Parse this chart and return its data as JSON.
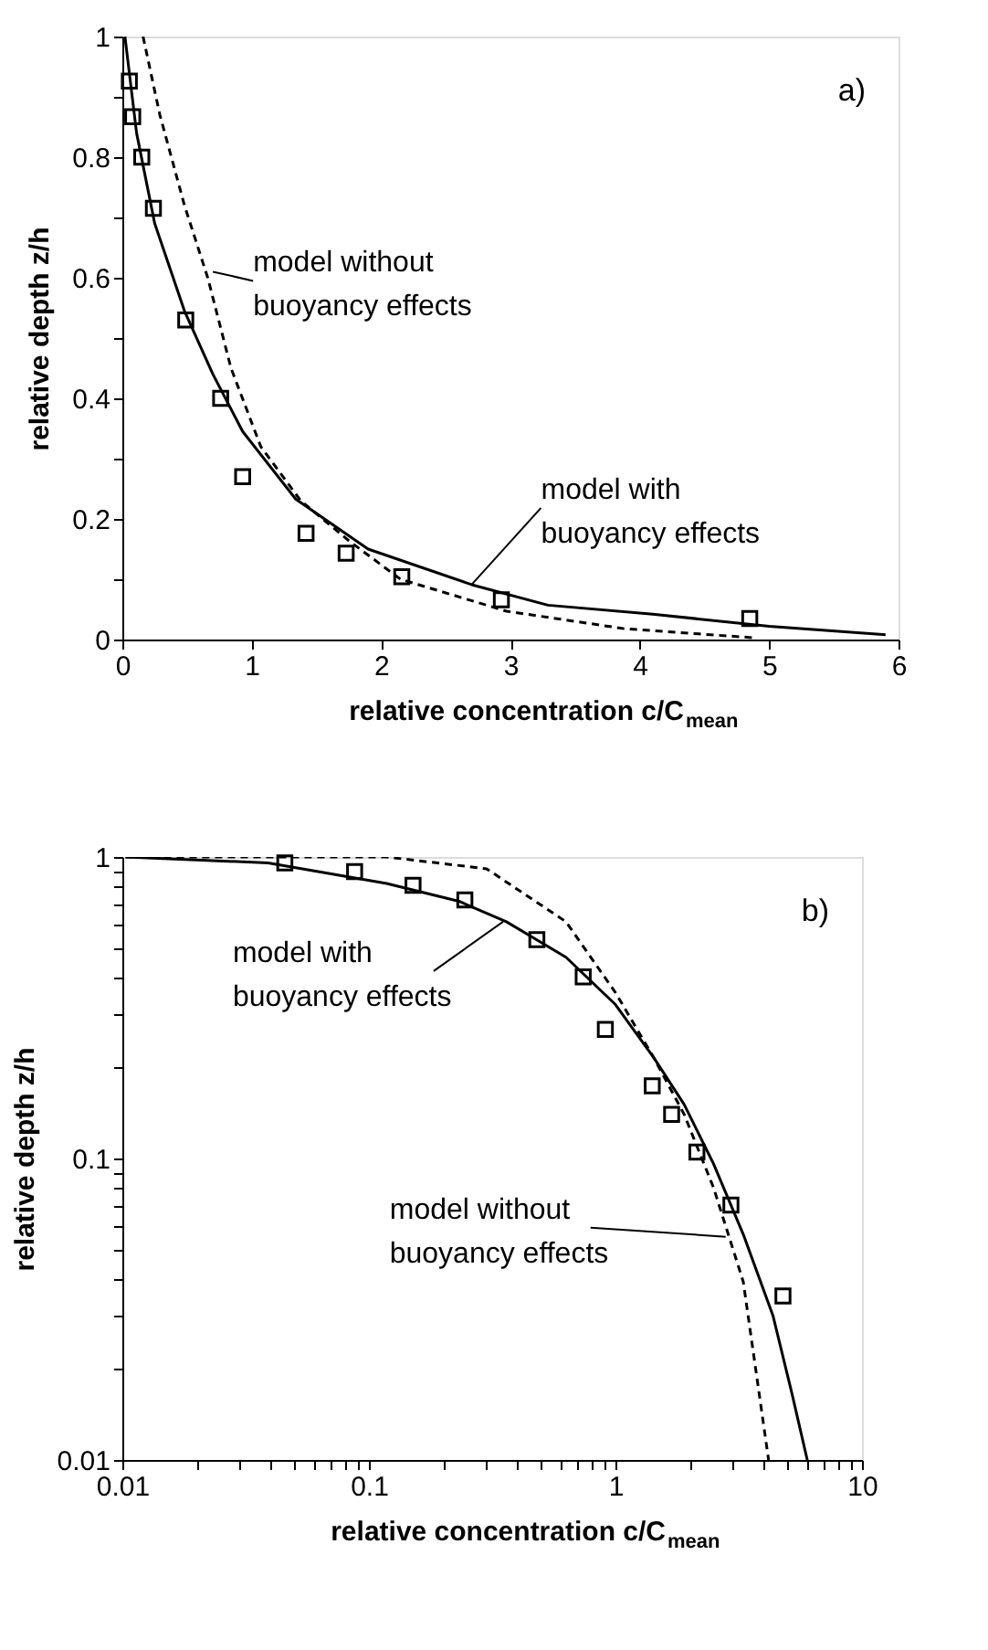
{
  "chart_data": [
    {
      "type": "line",
      "xlabel": "relative concentration c/C$_{mean}$",
      "ylabel": "relative depth z/h",
      "xlim": [
        0,
        6
      ],
      "ylim": [
        0,
        1
      ],
      "xticks": [
        0,
        1,
        2,
        3,
        4,
        5,
        6
      ],
      "yticks": [
        0,
        {
          "value": 0.1,
          "label": null
        },
        0.2,
        {
          "value": 0.3,
          "label": null
        },
        0.4,
        {
          "value": 0.5,
          "label": null
        },
        0.6,
        {
          "value": 0.7,
          "label": null
        },
        0.8,
        {
          "value": 0.9,
          "label": null
        },
        1
      ],
      "grid": false,
      "series": [
        {
          "type": "line",
          "line_style": "solid",
          "color": "#000000",
          "x": [
            0.02,
            0.11,
            0.25,
            0.48,
            0.7,
            0.93,
            1.34,
            1.9,
            2.7,
            3.29,
            4.1,
            5.0,
            5.9
          ],
          "values": [
            1.0,
            0.84,
            0.69,
            0.545,
            0.44,
            0.345,
            0.233,
            0.15,
            0.091,
            0.057,
            0.042,
            0.022,
            0.008
          ]
        },
        {
          "type": "line",
          "line_style": "dashed",
          "color": "#000000",
          "x": [
            0.16,
            0.29,
            0.48,
            0.66,
            0.84,
            1.07,
            1.38,
            1.75,
            2.15,
            2.97,
            3.88,
            4.88
          ],
          "values": [
            1.0,
            0.87,
            0.72,
            0.6,
            0.45,
            0.32,
            0.23,
            0.164,
            0.1,
            0.047,
            0.018,
            0.003
          ]
        },
        {
          "type": "scatter",
          "marker": "square",
          "color": "#000000",
          "x": [
            0.054,
            0.08,
            0.15,
            0.24,
            0.49,
            0.76,
            0.93,
            1.42,
            1.73,
            2.16,
            2.93,
            4.85
          ],
          "values": [
            0.926,
            0.867,
            0.8,
            0.715,
            0.53,
            0.4,
            0.27,
            0.176,
            0.143,
            0.104,
            0.066,
            0.035
          ]
        }
      ],
      "annotations": [
        "a)",
        {
          "text": "model without\nbuoyancy effects",
          "x": 0.7,
          "y": 0.61
        },
        {
          "text": "model with\nbuoyancy effects",
          "x": 2.7,
          "y": 0.091
        }
      ]
    },
    {
      "type": "line",
      "xlabel": "relative concentration c/C$_{mean}$",
      "ylabel": "relative depth z/h",
      "log": "xy",
      "xlim": [
        0.01,
        10
      ],
      "ylim": [
        0.01,
        1
      ],
      "xticks": [
        0.01,
        {
          "value": 0.02,
          "label": null
        },
        {
          "value": 0.03,
          "label": null
        },
        {
          "value": 0.04,
          "label": null
        },
        {
          "value": 0.05,
          "label": null
        },
        {
          "value": 0.06,
          "label": null
        },
        {
          "value": 0.07,
          "label": null
        },
        {
          "value": 0.08,
          "label": null
        },
        {
          "value": 0.09,
          "label": null
        },
        0.1,
        {
          "value": 0.2,
          "label": null
        },
        {
          "value": 0.3,
          "label": null
        },
        {
          "value": 0.4,
          "label": null
        },
        {
          "value": 0.5,
          "label": null
        },
        {
          "value": 0.6,
          "label": null
        },
        {
          "value": 0.7,
          "label": null
        },
        {
          "value": 0.8,
          "label": null
        },
        {
          "value": 0.9,
          "label": null
        },
        1,
        {
          "value": 2,
          "label": null
        },
        {
          "value": 3,
          "label": null
        },
        {
          "value": 4,
          "label": null
        },
        {
          "value": 5,
          "label": null
        },
        {
          "value": 6,
          "label": null
        },
        {
          "value": 7,
          "label": null
        },
        {
          "value": 8,
          "label": null
        },
        {
          "value": 9,
          "label": null
        },
        10
      ],
      "yticks": [
        0.01,
        {
          "value": 0.02,
          "label": null
        },
        {
          "value": 0.03,
          "label": null
        },
        {
          "value": 0.04,
          "label": null
        },
        {
          "value": 0.05,
          "label": null
        },
        {
          "value": 0.06,
          "label": null
        },
        {
          "value": 0.07,
          "label": null
        },
        {
          "value": 0.08,
          "label": null
        },
        {
          "value": 0.09,
          "label": null
        },
        0.1,
        {
          "value": 0.2,
          "label": null
        },
        {
          "value": 0.3,
          "label": null
        },
        {
          "value": 0.4,
          "label": null
        },
        {
          "value": 0.5,
          "label": null
        },
        {
          "value": 0.6,
          "label": null
        },
        {
          "value": 0.7,
          "label": null
        },
        {
          "value": 0.8,
          "label": null
        },
        {
          "value": 0.9,
          "label": null
        },
        1
      ],
      "grid": false,
      "series": [
        {
          "type": "line",
          "line_style": "solid",
          "color": "#000000",
          "x": [
            0.0103,
            0.039,
            0.118,
            0.232,
            0.361,
            0.63,
            1.0,
            1.43,
            1.9,
            2.5,
            3.3,
            4.36,
            5.2,
            6.0
          ],
          "values": [
            1.0,
            0.956,
            0.817,
            0.713,
            0.61,
            0.465,
            0.324,
            0.216,
            0.151,
            0.096,
            0.056,
            0.03,
            0.0166,
            0.01
          ]
        },
        {
          "type": "line",
          "line_style": "dashed",
          "color": "#000000",
          "x": [
            0.0103,
            0.118,
            0.3,
            0.63,
            1.0,
            1.43,
            1.9,
            2.5,
            3.3,
            4.18
          ],
          "values": [
            1.0,
            1.0,
            0.914,
            0.61,
            0.355,
            0.216,
            0.14,
            0.08,
            0.039,
            0.01
          ]
        },
        {
          "type": "scatter",
          "marker": "square",
          "color": "#000000",
          "x": [
            0.0456,
            0.0875,
            0.151,
            0.245,
            0.48,
            0.74,
            0.91,
            1.41,
            1.69,
            2.14,
            2.94,
            4.78
          ],
          "values": [
            0.956,
            0.894,
            0.806,
            0.72,
            0.532,
            0.4,
            0.268,
            0.174,
            0.14,
            0.105,
            0.07,
            0.035
          ]
        }
      ],
      "annotations": [
        "b)",
        {
          "text": "model with\nbuoyancy effects",
          "x": 0.35,
          "y": 0.61
        },
        {
          "text": "model without\nbuoyancy effects",
          "x": 2.8,
          "y": 0.055
        }
      ]
    }
  ]
}
